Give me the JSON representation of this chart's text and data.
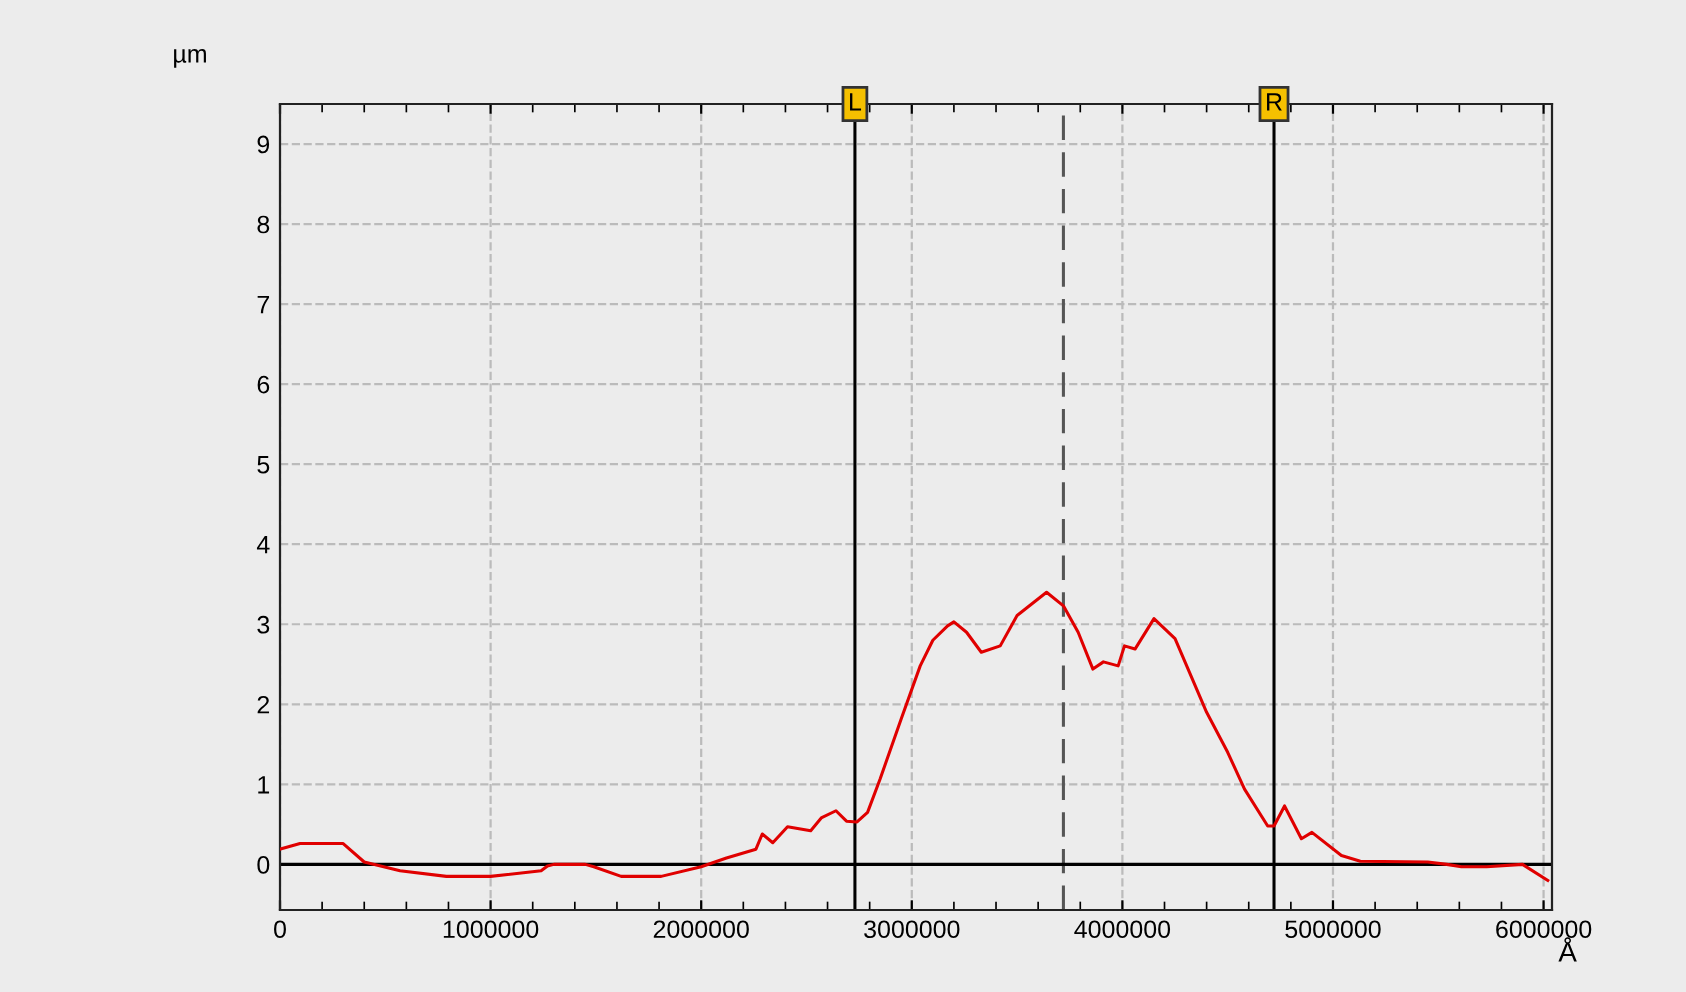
{
  "chart_data": {
    "type": "line",
    "xlabel": "Å",
    "ylabel": "µm",
    "series": [
      {
        "color": "#e00000",
        "x": [
          0,
          95000,
          300000,
          400000,
          570000,
          790000,
          1000000,
          1240000,
          1270000,
          1300000,
          1450000,
          1490000,
          1620000,
          1810000,
          2000000,
          2120000,
          2260000,
          2290000,
          2340000,
          2410000,
          2520000,
          2570000,
          2640000,
          2690000,
          2740000,
          2790000,
          2850000,
          2950000,
          3040000,
          3100000,
          3170000,
          3200000,
          3260000,
          3330000,
          3420000,
          3500000,
          3640000,
          3720000,
          3790000,
          3860000,
          3910000,
          3980000,
          4010000,
          4060000,
          4150000,
          4250000,
          4400000,
          4500000,
          4580000,
          4690000,
          4720000,
          4770000,
          4850000,
          4900000,
          5040000,
          5130000,
          5450000,
          5540000,
          5610000,
          5730000,
          5900000,
          6020000
        ],
        "values": [
          0.19,
          0.26,
          0.26,
          0.03,
          -0.08,
          -0.15,
          -0.15,
          -0.08,
          -0.02,
          0,
          0,
          -0.03,
          -0.15,
          -0.15,
          -0.03,
          0.08,
          0.19,
          0.38,
          0.27,
          0.47,
          0.42,
          0.58,
          0.67,
          0.54,
          0.53,
          0.65,
          1.07,
          1.82,
          2.48,
          2.8,
          2.98,
          3.03,
          2.9,
          2.65,
          2.73,
          3.11,
          3.4,
          3.23,
          2.9,
          2.44,
          2.53,
          2.48,
          2.73,
          2.69,
          3.07,
          2.82,
          1.9,
          1.4,
          0.94,
          0.48,
          0.48,
          0.73,
          0.32,
          0.4,
          0.11,
          0.04,
          0.03,
          0,
          -0.03,
          -0.03,
          0,
          -0.2
        ]
      }
    ],
    "xlim": [
      0,
      6040000
    ],
    "ylim": [
      -0.57,
      9.5
    ],
    "xticks": [
      0,
      1000000,
      2000000,
      3000000,
      4000000,
      5000000,
      6000000
    ],
    "yticks": [
      0,
      1,
      2,
      3,
      4,
      5,
      6,
      7,
      8,
      9
    ],
    "grid": true,
    "marker": "none",
    "line_style": "solid",
    "ref_lines": [
      {
        "axis": "x",
        "value": 2730000,
        "label": "L",
        "color": "#000000",
        "line_style": "solid"
      },
      {
        "axis": "x",
        "value": 3720000,
        "label": null,
        "color": "#555555",
        "line_style": "dashed"
      },
      {
        "axis": "x",
        "value": 4720000,
        "label": "R",
        "color": "#000000",
        "line_style": "solid"
      },
      {
        "axis": "y",
        "value": 0,
        "label": null,
        "color": "#000000",
        "line_style": "solid"
      }
    ]
  }
}
